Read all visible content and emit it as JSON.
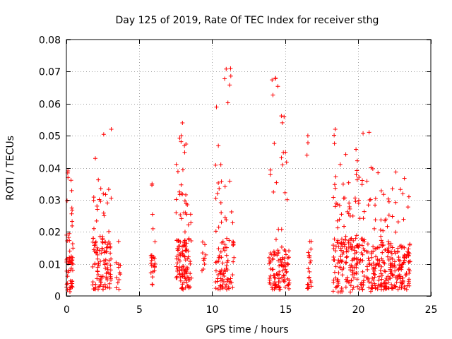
{
  "chart_data": {
    "type": "scatter",
    "title": "Day 125 of 2019, Rate Of TEC Index for receiver sthg",
    "xlabel": "GPS time / hours",
    "ylabel": "ROTI / TECUs",
    "xlim": [
      0,
      25
    ],
    "ylim": [
      0,
      0.08
    ],
    "xticks": [
      0,
      5,
      10,
      15,
      20,
      25
    ],
    "xtick_labels": [
      "0",
      "5",
      "10",
      "15",
      "20",
      "25"
    ],
    "yticks": [
      0,
      0.01,
      0.02,
      0.03,
      0.04,
      0.05,
      0.06,
      0.07,
      0.08
    ],
    "ytick_labels": [
      "0",
      "0.01",
      "0.02",
      "0.03",
      "0.04",
      "0.05",
      "0.06",
      "0.07",
      "0.08"
    ],
    "grid": true,
    "marker": "+",
    "colors": {
      "marker": "#ff0000",
      "grid": "#a0a0a0",
      "axes": "#000000"
    },
    "series": [
      {
        "name": "ROTI",
        "clusters": [
          {
            "x_start": 0.0,
            "x_end": 0.45,
            "y_low": 0.001,
            "y_high": 0.039,
            "y_mid": 0.008,
            "density": 60
          },
          {
            "x_start": 1.8,
            "x_end": 3.1,
            "y_low": 0.002,
            "y_high": 0.052,
            "y_mid": 0.01,
            "density": 120
          },
          {
            "x_start": 3.4,
            "x_end": 3.7,
            "y_low": 0.002,
            "y_high": 0.017,
            "y_mid": 0.006,
            "density": 12
          },
          {
            "x_start": 5.8,
            "x_end": 6.1,
            "y_low": 0.002,
            "y_high": 0.035,
            "y_mid": 0.007,
            "density": 25
          },
          {
            "x_start": 7.5,
            "x_end": 8.6,
            "y_low": 0.002,
            "y_high": 0.054,
            "y_mid": 0.01,
            "density": 130
          },
          {
            "x_start": 9.3,
            "x_end": 9.6,
            "y_low": 0.006,
            "y_high": 0.016,
            "y_mid": 0.01,
            "density": 10
          },
          {
            "x_start": 10.2,
            "x_end": 11.5,
            "y_low": 0.002,
            "y_high": 0.071,
            "y_mid": 0.01,
            "density": 100
          },
          {
            "x_start": 13.9,
            "x_end": 15.3,
            "y_low": 0.002,
            "y_high": 0.068,
            "y_mid": 0.008,
            "density": 120
          },
          {
            "x_start": 16.5,
            "x_end": 16.8,
            "y_low": 0.002,
            "y_high": 0.05,
            "y_mid": 0.01,
            "density": 25
          },
          {
            "x_start": 18.3,
            "x_end": 20.9,
            "y_low": 0.001,
            "y_high": 0.052,
            "y_mid": 0.01,
            "density": 220
          },
          {
            "x_start": 20.9,
            "x_end": 23.6,
            "y_low": 0.002,
            "y_high": 0.04,
            "y_mid": 0.009,
            "density": 240
          }
        ]
      }
    ]
  }
}
